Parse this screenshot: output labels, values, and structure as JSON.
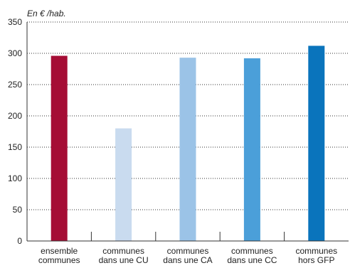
{
  "chart_data": {
    "type": "bar",
    "unit_label": "En € /hab.",
    "categories": [
      [
        "ensemble",
        "communes"
      ],
      [
        "communes",
        "dans une CU"
      ],
      [
        "communes",
        "dans une CA"
      ],
      [
        "communes",
        "dans une CC"
      ],
      [
        "communes",
        "hors GFP"
      ]
    ],
    "values": [
      296,
      180,
      293,
      292,
      312
    ],
    "colors": [
      "#a50d35",
      "#c9dbef",
      "#9bc3e7",
      "#4b9fd9",
      "#0a74bc"
    ],
    "ylim": [
      0,
      350
    ],
    "yticks": [
      0,
      50,
      100,
      150,
      200,
      250,
      300,
      350
    ],
    "grid": true
  }
}
